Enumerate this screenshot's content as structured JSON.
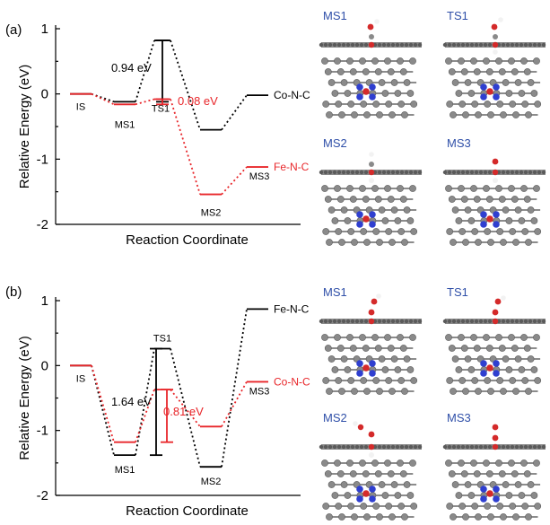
{
  "colors": {
    "black_series": "#000000",
    "red_series": "#e8262a",
    "atom_gray": "#8a8a8a",
    "atom_dark": "#5a5a5a",
    "atom_red": "#d42a2a",
    "atom_blue": "#2f3fd0",
    "atom_white": "#f2f2f2",
    "thumb_label": "#2f4fa8"
  },
  "chart_data": [
    {
      "type": "line",
      "panel": "(a)",
      "xlabel": "Reaction Coordinate",
      "ylabel": "Relative Energy (eV)",
      "ylim": [
        -2,
        1
      ],
      "yticks": [
        "1",
        "0",
        "-1",
        "-2"
      ],
      "states": [
        "IS",
        "MS1",
        "TS1",
        "MS2",
        "MS3"
      ],
      "series": [
        {
          "name": "Co-N-C",
          "color": "#000000",
          "values": [
            0,
            -0.12,
            0.82,
            -0.55,
            -0.02
          ]
        },
        {
          "name": "Fe-N-C",
          "color": "#e8262a",
          "values": [
            0,
            -0.16,
            -0.08,
            -1.54,
            -1.12
          ]
        }
      ],
      "barriers": [
        {
          "label": "0.94 eV",
          "color": "#000000",
          "from": -0.12,
          "to": 0.82
        },
        {
          "label": "0.08 eV",
          "color": "#e8262a",
          "from": -0.16,
          "to": -0.08
        }
      ]
    },
    {
      "type": "line",
      "panel": "(b)",
      "xlabel": "Reaction Coordinate",
      "ylabel": "Relative Energy (eV)",
      "ylim": [
        -2,
        1
      ],
      "yticks": [
        "1",
        "0",
        "-1",
        "-2"
      ],
      "states": [
        "IS",
        "MS1",
        "TS1",
        "MS2",
        "MS3"
      ],
      "series": [
        {
          "name": "Fe-N-C",
          "color": "#000000",
          "values": [
            0,
            -1.38,
            0.26,
            -1.56,
            0.87
          ]
        },
        {
          "name": "Co-N-C",
          "color": "#e8262a",
          "values": [
            0,
            -1.18,
            -0.37,
            -0.94,
            -0.25
          ]
        }
      ],
      "barriers": [
        {
          "label": "1.64 eV",
          "color": "#000000",
          "from": -1.38,
          "to": 0.26
        },
        {
          "label": "0.81 eV",
          "color": "#e8262a",
          "from": -1.18,
          "to": -0.37
        }
      ]
    }
  ],
  "structures": {
    "a": [
      "MS1",
      "TS1",
      "MS2",
      "MS3"
    ],
    "b": [
      "MS1",
      "TS1",
      "MS2",
      "MS3"
    ]
  }
}
